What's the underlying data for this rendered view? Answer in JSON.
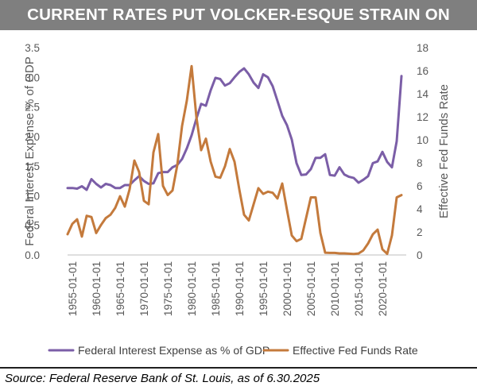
{
  "header": {
    "title": "CURRENT RATES PUT VOLCKER-ESQUE STRAIN ON BUDGET"
  },
  "footer": {
    "source": "Source: Federal Reserve Bank of St. Louis, as of 6.30.2025"
  },
  "colors": {
    "banner": "#7f7f7f",
    "interest_series": "#7b5ea7",
    "fedfunds_series": "#c47a3c",
    "text": "#595959"
  },
  "chart_data": {
    "type": "line",
    "title": "CURRENT RATES PUT VOLCKER-ESQUE STRAIN ON BUDGET",
    "xlabel": "",
    "ylabel_left": "Federal Interest Expense % of GDP",
    "ylabel_right": "Effective Fed Funds Rate",
    "ylim_left": [
      0,
      3.5
    ],
    "ylim_right": [
      0,
      18
    ],
    "yticks_left": [
      "0.0",
      "0.5",
      "1.0",
      "1.5",
      "2.0",
      "2.5",
      "3.0",
      "3.5"
    ],
    "yticks_right": [
      "0",
      "2",
      "4",
      "6",
      "8",
      "10",
      "12",
      "14",
      "16",
      "18"
    ],
    "xticks": [
      "1955-01-01",
      "1960-01-01",
      "1965-01-01",
      "1970-01-01",
      "1975-01-01",
      "1980-01-01",
      "1985-01-01",
      "1990-01-01",
      "1995-01-01",
      "2000-01-01",
      "2005-01-01",
      "2010-01-01",
      "2015-01-01",
      "2020-01-01"
    ],
    "x_range": [
      1954,
      2025
    ],
    "grid": false,
    "legend_position": "bottom",
    "series": [
      {
        "name": "Federal Interest Expense as % of GDP",
        "axis": "left",
        "x": [
          1954,
          1955,
          1956,
          1957,
          1958,
          1959,
          1960,
          1961,
          1962,
          1963,
          1964,
          1965,
          1966,
          1967,
          1968,
          1969,
          1970,
          1971,
          1972,
          1973,
          1974,
          1975,
          1976,
          1977,
          1978,
          1979,
          1980,
          1981,
          1982,
          1983,
          1984,
          1985,
          1986,
          1987,
          1988,
          1989,
          1990,
          1991,
          1992,
          1993,
          1994,
          1995,
          1996,
          1997,
          1998,
          1999,
          2000,
          2001,
          2002,
          2003,
          2004,
          2005,
          2006,
          2007,
          2008,
          2009,
          2010,
          2011,
          2012,
          2013,
          2014,
          2015,
          2016,
          2017,
          2018,
          2019,
          2020,
          2021,
          2022,
          2023,
          2024
        ],
        "values": [
          1.13,
          1.13,
          1.12,
          1.16,
          1.1,
          1.28,
          1.2,
          1.14,
          1.2,
          1.18,
          1.13,
          1.13,
          1.18,
          1.18,
          1.26,
          1.33,
          1.25,
          1.2,
          1.21,
          1.38,
          1.4,
          1.4,
          1.48,
          1.52,
          1.62,
          1.8,
          2.02,
          2.3,
          2.55,
          2.52,
          2.78,
          2.99,
          2.97,
          2.86,
          2.9,
          3.0,
          3.09,
          3.15,
          3.05,
          2.91,
          2.82,
          3.05,
          3.0,
          2.85,
          2.6,
          2.35,
          2.19,
          1.95,
          1.55,
          1.35,
          1.36,
          1.45,
          1.64,
          1.64,
          1.7,
          1.35,
          1.34,
          1.48,
          1.36,
          1.32,
          1.3,
          1.22,
          1.27,
          1.33,
          1.55,
          1.58,
          1.74,
          1.57,
          1.48,
          1.92,
          3.02
        ]
      },
      {
        "name": "Effective Fed Funds Rate",
        "axis": "right",
        "x": [
          1954,
          1955,
          1956,
          1957,
          1958,
          1959,
          1960,
          1961,
          1962,
          1963,
          1964,
          1965,
          1966,
          1967,
          1968,
          1969,
          1970,
          1971,
          1972,
          1973,
          1974,
          1975,
          1976,
          1977,
          1978,
          1979,
          1980,
          1981,
          1982,
          1983,
          1984,
          1985,
          1986,
          1987,
          1988,
          1989,
          1990,
          1991,
          1992,
          1993,
          1994,
          1995,
          1996,
          1997,
          1998,
          1999,
          2000,
          2001,
          2002,
          2003,
          2004,
          2005,
          2006,
          2007,
          2008,
          2009,
          2010,
          2011,
          2012,
          2013,
          2014,
          2015,
          2016,
          2017,
          2018,
          2019,
          2020,
          2021,
          2022,
          2023,
          2024
        ],
        "values": [
          1.8,
          2.7,
          3.1,
          1.6,
          3.4,
          3.3,
          1.9,
          2.6,
          3.2,
          3.5,
          4.1,
          5.1,
          4.2,
          5.7,
          8.2,
          7.2,
          4.7,
          4.4,
          8.9,
          10.5,
          6.0,
          5.2,
          5.6,
          7.8,
          11.2,
          13.4,
          16.4,
          12.0,
          9.1,
          10.1,
          8.1,
          6.8,
          6.7,
          7.7,
          9.2,
          8.1,
          5.7,
          3.5,
          3.0,
          4.4,
          5.8,
          5.3,
          5.5,
          5.4,
          4.9,
          6.2,
          3.9,
          1.7,
          1.2,
          1.4,
          3.2,
          5.0,
          5.0,
          1.9,
          0.2,
          0.18,
          0.18,
          0.14,
          0.14,
          0.11,
          0.09,
          0.13,
          0.4,
          1.0,
          1.8,
          2.2,
          0.5,
          0.1,
          1.7,
          5.0,
          5.2
        ]
      }
    ]
  }
}
